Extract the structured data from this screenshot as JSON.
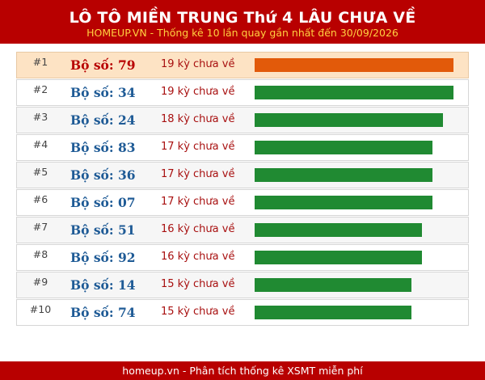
{
  "header": {
    "title": "LÔ TÔ MIỀN TRUNG Thứ 4 LÂU CHƯA VỀ",
    "subtitle": "HOMEUP.VN - Thống kê 10 lần quay gần nhất đến 30/09/2026"
  },
  "colors": {
    "header_bg": "#b80000",
    "subtitle_text": "#ffd040",
    "highlight_bar": "#e25a0a",
    "normal_bar": "#208a32",
    "highlight_row_bg": "#fde3c4"
  },
  "rows": [
    {
      "rank": "#1",
      "label": "Bộ số: 79",
      "count_text": "19 kỳ chưa về",
      "days": 19
    },
    {
      "rank": "#2",
      "label": "Bộ số: 34",
      "count_text": "19 kỳ chưa về",
      "days": 19
    },
    {
      "rank": "#3",
      "label": "Bộ số: 24",
      "count_text": "18 kỳ chưa về",
      "days": 18
    },
    {
      "rank": "#4",
      "label": "Bộ số: 83",
      "count_text": "17 kỳ chưa về",
      "days": 17
    },
    {
      "rank": "#5",
      "label": "Bộ số: 36",
      "count_text": "17 kỳ chưa về",
      "days": 17
    },
    {
      "rank": "#6",
      "label": "Bộ số: 07",
      "count_text": "17 kỳ chưa về",
      "days": 17
    },
    {
      "rank": "#7",
      "label": "Bộ số: 51",
      "count_text": "16 kỳ chưa về",
      "days": 16
    },
    {
      "rank": "#8",
      "label": "Bộ số: 92",
      "count_text": "16 kỳ chưa về",
      "days": 16
    },
    {
      "rank": "#9",
      "label": "Bộ số: 14",
      "count_text": "15 kỳ chưa về",
      "days": 15
    },
    {
      "rank": "#10",
      "label": "Bộ số: 74",
      "count_text": "15 kỳ chưa về",
      "days": 15
    }
  ],
  "footer": {
    "text": "homeup.vn - Phân tích thống kê XSMT miễn phí"
  }
}
